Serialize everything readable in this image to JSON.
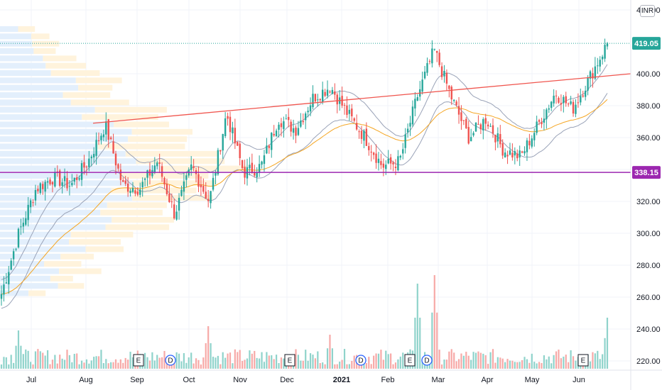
{
  "currency": "INR",
  "colors": {
    "up": "#26a69a",
    "down": "#ef5350",
    "up_volume": "#8fd3cb",
    "down_volume": "#f7a9a7",
    "trendline": "#f0564f",
    "support_line": "#9c27b0",
    "last_price_tag": "#26a69a",
    "support_tag": "#9c27b0",
    "ema_slow": "#f5a623",
    "ema_fast": "#9aa3b8",
    "volume_profile_up": "#e3effc",
    "volume_profile_down": "#fff3dc",
    "event_dividend": "#2962ff",
    "grid": "#f0f3fa"
  },
  "chart_data": {
    "type": "candlestick",
    "y_axis": {
      "labels": [
        "440.00",
        "400.00",
        "380.00",
        "360.00",
        "340.00",
        "320.00",
        "300.00",
        "280.00",
        "260.00",
        "240.00",
        "220.00"
      ],
      "ticks": [
        440,
        400,
        380,
        360,
        340,
        320,
        300,
        280,
        260,
        240,
        220
      ],
      "range": [
        216,
        446
      ]
    },
    "x_axis": {
      "labels": [
        "Jul",
        "Aug",
        "Sep",
        "Oct",
        "Nov",
        "Dec",
        "2021",
        "Feb",
        "Mar",
        "Apr",
        "May",
        "Jun"
      ]
    },
    "last_price": {
      "value": 419.05,
      "label": "419.05"
    },
    "horizontal_line": {
      "value": 338.15,
      "label": "338.15"
    },
    "trendline": {
      "start": {
        "date": "Aug-2020",
        "value": 369
      },
      "end": {
        "date": "Jun-2021",
        "value": 400
      }
    },
    "events": [
      {
        "type": "earnings",
        "label": "E",
        "month": "Sep"
      },
      {
        "type": "dividend",
        "label": "D",
        "month": "Sep"
      },
      {
        "type": "earnings",
        "label": "E",
        "month": "Dec"
      },
      {
        "type": "dividend",
        "label": "D",
        "month": "Jan"
      },
      {
        "type": "earnings",
        "label": "E",
        "month": "Feb"
      },
      {
        "type": "dividend",
        "label": "D",
        "month": "Feb"
      },
      {
        "type": "earnings",
        "label": "E",
        "month": "Jun"
      }
    ],
    "price_path": [
      {
        "month": "Jun-end",
        "value": 262
      },
      {
        "month": "Jul-early",
        "value": 300
      },
      {
        "month": "Jul-mid",
        "value": 328
      },
      {
        "month": "Jul-end",
        "value": 335
      },
      {
        "month": "Aug-early",
        "value": 330
      },
      {
        "month": "Aug-mid",
        "value": 345
      },
      {
        "month": "Aug-end",
        "value": 368
      },
      {
        "month": "Sep-early",
        "value": 330
      },
      {
        "month": "Sep-mid",
        "value": 328
      },
      {
        "month": "Sep-end",
        "value": 345
      },
      {
        "month": "Oct-early",
        "value": 312
      },
      {
        "month": "Oct-mid",
        "value": 342
      },
      {
        "month": "Oct-end",
        "value": 320
      },
      {
        "month": "Nov-early",
        "value": 375
      },
      {
        "month": "Nov-mid",
        "value": 338
      },
      {
        "month": "Nov-end",
        "value": 342
      },
      {
        "month": "Dec-early",
        "value": 372
      },
      {
        "month": "Dec-mid",
        "value": 365
      },
      {
        "month": "Dec-end",
        "value": 385
      },
      {
        "month": "Jan-early",
        "value": 392
      },
      {
        "month": "Jan-mid",
        "value": 375
      },
      {
        "month": "Jan-end",
        "value": 360
      },
      {
        "month": "Feb-early",
        "value": 342
      },
      {
        "month": "Feb-mid",
        "value": 345
      },
      {
        "month": "Feb-end",
        "value": 385
      },
      {
        "month": "Mar-early",
        "value": 415
      },
      {
        "month": "Mar-mid",
        "value": 385
      },
      {
        "month": "Mar-end",
        "value": 360
      },
      {
        "month": "Apr-early",
        "value": 372
      },
      {
        "month": "Apr-mid",
        "value": 352
      },
      {
        "month": "Apr-end",
        "value": 348
      },
      {
        "month": "May-early",
        "value": 368
      },
      {
        "month": "May-mid",
        "value": 388
      },
      {
        "month": "May-end",
        "value": 378
      },
      {
        "month": "Jun-early",
        "value": 398
      },
      {
        "month": "Jun-mid",
        "value": 419
      }
    ],
    "volume_spikes": [
      {
        "month": "Jul-early",
        "relative": 0.45
      },
      {
        "month": "Oct-end",
        "relative": 0.5
      },
      {
        "month": "Jan-early",
        "relative": 0.4
      },
      {
        "month": "Feb-end",
        "relative": 1.0
      },
      {
        "month": "Mar-early",
        "relative": 1.1
      },
      {
        "month": "Jun-mid",
        "relative": 0.6
      }
    ]
  }
}
